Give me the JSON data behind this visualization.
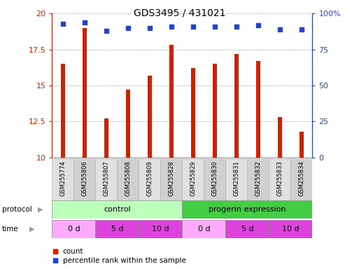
{
  "title": "GDS3495 / 431021",
  "samples": [
    "GSM255774",
    "GSM255806",
    "GSM255807",
    "GSM255808",
    "GSM255809",
    "GSM255828",
    "GSM255829",
    "GSM255830",
    "GSM255831",
    "GSM255832",
    "GSM255833",
    "GSM255834"
  ],
  "count_values": [
    16.5,
    19.0,
    12.7,
    14.7,
    15.7,
    17.8,
    16.2,
    16.5,
    17.2,
    16.7,
    12.8,
    11.8
  ],
  "percentile_values": [
    93,
    94,
    88,
    90,
    90,
    91,
    91,
    91,
    91,
    92,
    89,
    89
  ],
  "ylim_left": [
    10,
    20
  ],
  "yticks_left": [
    10,
    12.5,
    15,
    17.5,
    20
  ],
  "ylim_right": [
    0,
    100
  ],
  "yticks_right": [
    0,
    25,
    50,
    75,
    100
  ],
  "bar_color": "#cc2200",
  "dot_color": "#2244cc",
  "bar_width": 0.18,
  "protocol_colors": [
    "#bbffbb",
    "#44cc44"
  ],
  "time_colors": [
    "#ffaaff",
    "#dd44dd",
    "#dd44dd",
    "#ffaaff",
    "#dd44dd",
    "#dd44dd"
  ],
  "time_labels": [
    "0 d",
    "5 d",
    "10 d",
    "0 d",
    "5 d",
    "10 d"
  ],
  "grid_color": "#888888",
  "label_color_left": "#cc2200",
  "label_color_right": "#2244cc",
  "legend_count_color": "#cc2200",
  "legend_pct_color": "#2244cc",
  "sample_bg_colors": [
    "#dddddd",
    "#dddddd",
    "#cccccc",
    "#cccccc",
    "#bbbbbb",
    "#bbbbbb",
    "#cccccc",
    "#cccccc",
    "#dddddd",
    "#dddddd",
    "#cccccc",
    "#cccccc"
  ]
}
